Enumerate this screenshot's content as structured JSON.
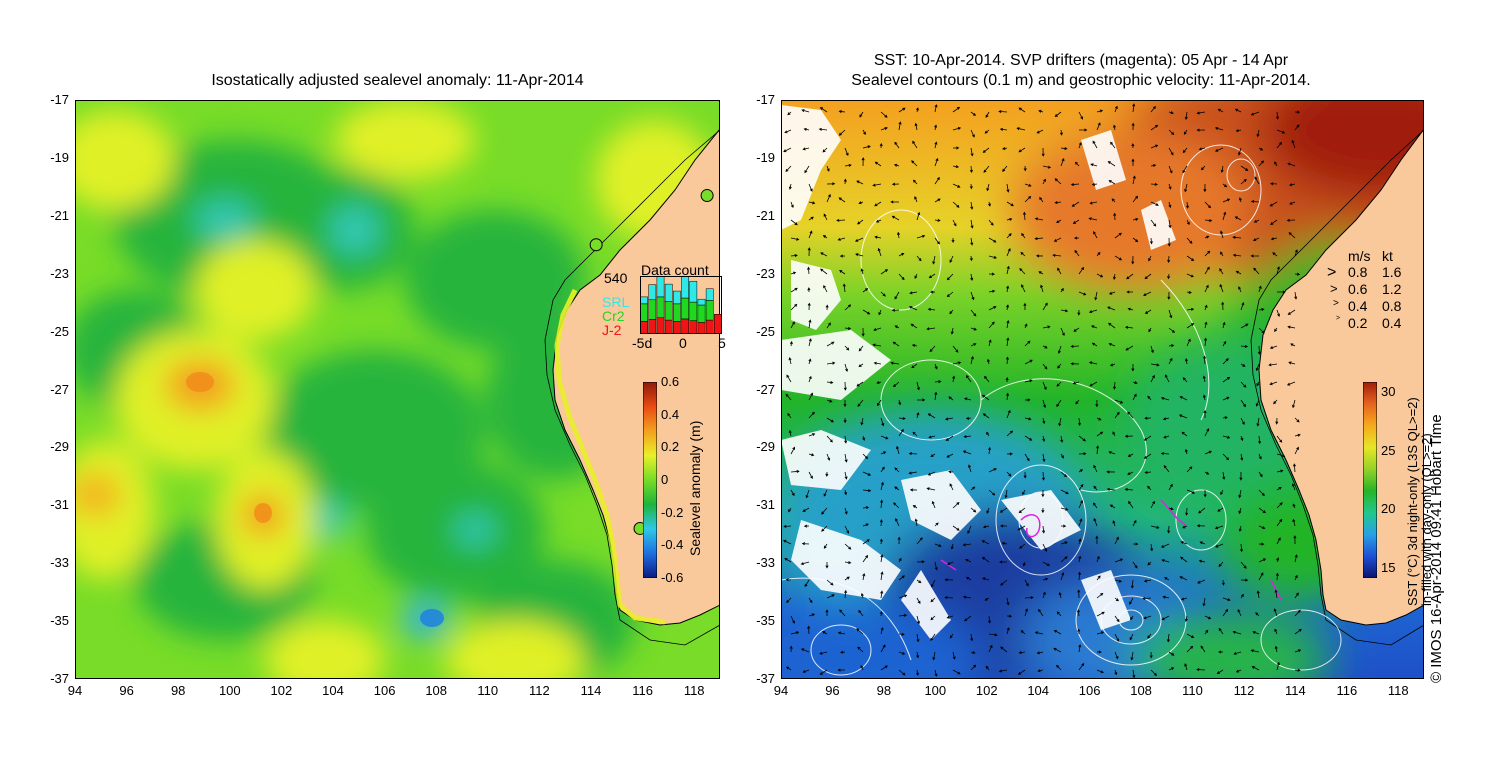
{
  "left_panel": {
    "title": "Isostatically adjusted sealevel anomaly: 11-Apr-2014",
    "colorbar": {
      "label": "Sealevel anomaly (m)",
      "ticks": [
        "0.6",
        "0.4",
        "0.2",
        "0",
        "-0.2",
        "-0.4",
        "-0.6"
      ],
      "colors": [
        "#0a1a80",
        "#1e6fe0",
        "#30c8e8",
        "#1eb43c",
        "#78dc28",
        "#e8f028",
        "#f4a020",
        "#e84a14",
        "#8c1a0a"
      ]
    },
    "data_count": {
      "title": "Data count",
      "max_label": "540",
      "series": [
        {
          "name": "SRL",
          "color": "#30e8e8"
        },
        {
          "name": "Cr2",
          "color": "#20d820"
        },
        {
          "name": "J-2",
          "color": "#f01414"
        }
      ],
      "x_ticks": [
        "-5d",
        "0",
        "5"
      ],
      "days": [
        -5,
        -4,
        -3,
        -2,
        -1,
        0,
        1,
        2,
        3,
        4
      ],
      "j2": [
        0.22,
        0.25,
        0.28,
        0.24,
        0.22,
        0.26,
        0.23,
        0.2,
        0.24,
        0.34
      ],
      "cr2": [
        0.3,
        0.34,
        0.36,
        0.32,
        0.3,
        0.36,
        0.32,
        0.3,
        0.34,
        0.0
      ],
      "srl": [
        0.12,
        0.26,
        0.45,
        0.3,
        0.22,
        0.46,
        0.36,
        0.1,
        0.2,
        0.0
      ]
    },
    "markers": [
      {
        "lon": 114.2,
        "lat": -22.0
      },
      {
        "lon": 118.5,
        "lat": -20.3
      },
      {
        "lon": 115.9,
        "lat": -31.8
      }
    ]
  },
  "right_panel": {
    "title_line1": "SST: 10-Apr-2014. SVP drifters (magenta): 05 Apr - 14 Apr",
    "title_line2": "Sealevel contours (0.1 m) and geostrophic velocity: 11-Apr-2014.",
    "speed_legend": {
      "units_ms": "m/s",
      "units_kt": "kt",
      "rows": [
        {
          "ms": "0.8",
          "kt": "1.6"
        },
        {
          "ms": "0.6",
          "kt": "1.2"
        },
        {
          "ms": "0.4",
          "kt": "0.8"
        },
        {
          "ms": "0.2",
          "kt": "0.4"
        }
      ]
    },
    "colorbar": {
      "label_line1": "SST (°C) 3d night-only (L3S QL>=2)",
      "label_line2": "in-filled with day-only (QL>=2)",
      "ticks": [
        "30",
        "25",
        "20",
        "15"
      ],
      "colors": [
        "#0a1470",
        "#1e50d2",
        "#28a0e6",
        "#22c88c",
        "#28b428",
        "#96d228",
        "#e6e628",
        "#f4aa1e",
        "#e6641e",
        "#a01e0a"
      ]
    }
  },
  "axes": {
    "lat_ticks": [
      "-17",
      "-19",
      "-21",
      "-23",
      "-25",
      "-27",
      "-29",
      "-31",
      "-33",
      "-35",
      "-37"
    ],
    "lon_ticks": [
      "94",
      "96",
      "98",
      "100",
      "102",
      "104",
      "106",
      "108",
      "110",
      "112",
      "114",
      "116",
      "118"
    ],
    "lat_range": [
      -37,
      -17
    ],
    "lon_range": [
      94,
      119
    ]
  },
  "colors": {
    "land": "#f9c89b",
    "coast": "#000000",
    "cloud": "#ffffff"
  },
  "credit": "© IMOS 16-Apr-2014 09:41 Hobart Time"
}
